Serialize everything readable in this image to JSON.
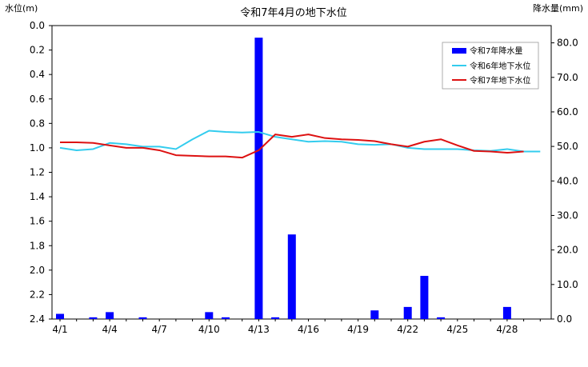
{
  "chart_data": {
    "type": "bar+line",
    "title": "令和7年4月の地下水位",
    "left_axis_label": "水位(m)",
    "right_axis_label": "降水量(mm)",
    "left_ylim": [
      0.0,
      2.4
    ],
    "left_inverted": true,
    "left_ticks": [
      "0.0",
      "0.2",
      "0.4",
      "0.6",
      "0.8",
      "1.0",
      "1.2",
      "1.4",
      "1.6",
      "1.8",
      "2.0",
      "2.2",
      "2.4"
    ],
    "right_ylim": [
      0.0,
      85.0
    ],
    "right_ticks": [
      "0.0",
      "10.0",
      "20.0",
      "30.0",
      "40.0",
      "50.0",
      "60.0",
      "70.0",
      "80.0"
    ],
    "x_days": [
      1,
      2,
      3,
      4,
      5,
      6,
      7,
      8,
      9,
      10,
      11,
      12,
      13,
      14,
      15,
      16,
      17,
      18,
      19,
      20,
      21,
      22,
      23,
      24,
      25,
      26,
      27,
      28,
      29,
      30
    ],
    "x_tick_labels": [
      {
        "day": 1,
        "label": "4/1"
      },
      {
        "day": 4,
        "label": "4/4"
      },
      {
        "day": 7,
        "label": "4/7"
      },
      {
        "day": 10,
        "label": "4/10"
      },
      {
        "day": 13,
        "label": "4/13"
      },
      {
        "day": 16,
        "label": "4/16"
      },
      {
        "day": 19,
        "label": "4/19"
      },
      {
        "day": 22,
        "label": "4/22"
      },
      {
        "day": 25,
        "label": "4/25"
      },
      {
        "day": 28,
        "label": "4/28"
      }
    ],
    "grid": false,
    "legend_position": "top-right",
    "series": [
      {
        "name": "令和7年降水量",
        "kind": "bar",
        "axis": "right",
        "color": "#0000ff",
        "values": [
          1.5,
          0,
          0.5,
          2,
          0,
          0.5,
          0,
          0,
          0,
          2,
          0.5,
          0,
          81.5,
          0.5,
          24.5,
          0,
          0,
          0,
          0,
          2.5,
          0,
          3.5,
          12.5,
          0.5,
          0,
          0,
          0,
          3.5,
          0,
          0
        ]
      },
      {
        "name": "令和6年地下水位",
        "kind": "line",
        "axis": "left",
        "color": "#33ccee",
        "values": [
          1.0,
          1.02,
          1.01,
          0.96,
          0.97,
          0.99,
          0.99,
          1.01,
          0.93,
          0.86,
          0.87,
          0.875,
          0.87,
          0.91,
          0.93,
          0.95,
          0.945,
          0.95,
          0.97,
          0.975,
          0.97,
          1.0,
          1.01,
          1.01,
          1.01,
          1.02,
          1.025,
          1.01,
          1.03,
          1.03
        ]
      },
      {
        "name": "令和7年地下水位",
        "kind": "line",
        "axis": "left",
        "color": "#dd1111",
        "values": [
          0.955,
          0.955,
          0.96,
          0.98,
          1.0,
          1.0,
          1.02,
          1.06,
          1.065,
          1.07,
          1.07,
          1.08,
          1.02,
          0.89,
          0.91,
          0.89,
          0.92,
          0.93,
          0.935,
          0.945,
          0.97,
          0.99,
          0.95,
          0.93,
          0.98,
          1.025,
          1.03,
          1.04,
          1.03
        ]
      }
    ]
  }
}
